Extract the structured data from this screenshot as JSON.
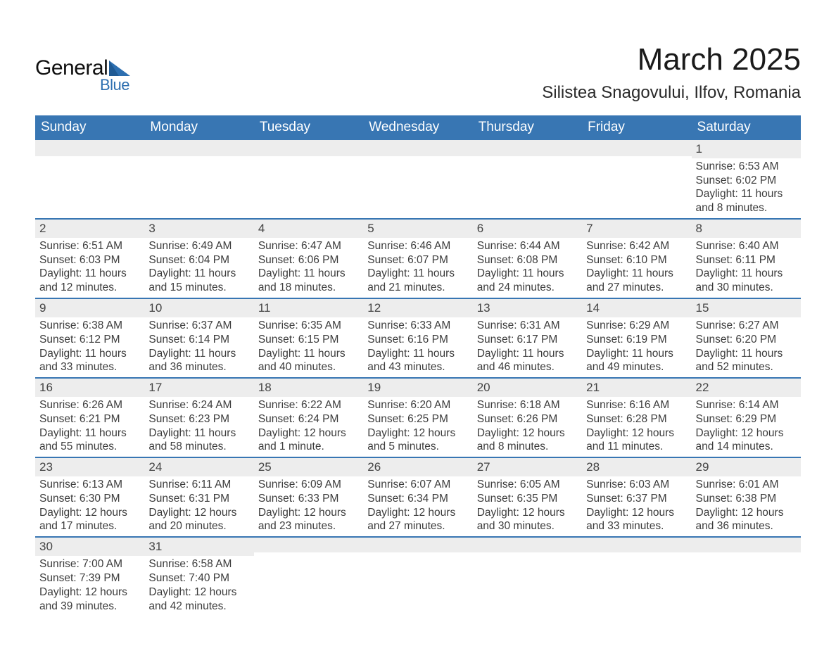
{
  "logo": {
    "general": "General",
    "blue": "Blue"
  },
  "title": "March 2025",
  "location": "Silistea Snagovului, Ilfov, Romania",
  "colors": {
    "header_bg": "#3876b3",
    "header_fg": "#ffffff",
    "daynum_bg": "#ededed",
    "border": "#3876b3",
    "text": "#3c3c3c",
    "logo_blue": "#2d6fb0",
    "logo_dark": "#0f0f0f"
  },
  "weekdays": [
    "Sunday",
    "Monday",
    "Tuesday",
    "Wednesday",
    "Thursday",
    "Friday",
    "Saturday"
  ],
  "weeks": [
    [
      {
        "empty": true
      },
      {
        "empty": true
      },
      {
        "empty": true
      },
      {
        "empty": true
      },
      {
        "empty": true
      },
      {
        "empty": true
      },
      {
        "num": "1",
        "sunrise": "Sunrise: 6:53 AM",
        "sunset": "Sunset: 6:02 PM",
        "dl1": "Daylight: 11 hours",
        "dl2": "and 8 minutes."
      }
    ],
    [
      {
        "num": "2",
        "sunrise": "Sunrise: 6:51 AM",
        "sunset": "Sunset: 6:03 PM",
        "dl1": "Daylight: 11 hours",
        "dl2": "and 12 minutes."
      },
      {
        "num": "3",
        "sunrise": "Sunrise: 6:49 AM",
        "sunset": "Sunset: 6:04 PM",
        "dl1": "Daylight: 11 hours",
        "dl2": "and 15 minutes."
      },
      {
        "num": "4",
        "sunrise": "Sunrise: 6:47 AM",
        "sunset": "Sunset: 6:06 PM",
        "dl1": "Daylight: 11 hours",
        "dl2": "and 18 minutes."
      },
      {
        "num": "5",
        "sunrise": "Sunrise: 6:46 AM",
        "sunset": "Sunset: 6:07 PM",
        "dl1": "Daylight: 11 hours",
        "dl2": "and 21 minutes."
      },
      {
        "num": "6",
        "sunrise": "Sunrise: 6:44 AM",
        "sunset": "Sunset: 6:08 PM",
        "dl1": "Daylight: 11 hours",
        "dl2": "and 24 minutes."
      },
      {
        "num": "7",
        "sunrise": "Sunrise: 6:42 AM",
        "sunset": "Sunset: 6:10 PM",
        "dl1": "Daylight: 11 hours",
        "dl2": "and 27 minutes."
      },
      {
        "num": "8",
        "sunrise": "Sunrise: 6:40 AM",
        "sunset": "Sunset: 6:11 PM",
        "dl1": "Daylight: 11 hours",
        "dl2": "and 30 minutes."
      }
    ],
    [
      {
        "num": "9",
        "sunrise": "Sunrise: 6:38 AM",
        "sunset": "Sunset: 6:12 PM",
        "dl1": "Daylight: 11 hours",
        "dl2": "and 33 minutes."
      },
      {
        "num": "10",
        "sunrise": "Sunrise: 6:37 AM",
        "sunset": "Sunset: 6:14 PM",
        "dl1": "Daylight: 11 hours",
        "dl2": "and 36 minutes."
      },
      {
        "num": "11",
        "sunrise": "Sunrise: 6:35 AM",
        "sunset": "Sunset: 6:15 PM",
        "dl1": "Daylight: 11 hours",
        "dl2": "and 40 minutes."
      },
      {
        "num": "12",
        "sunrise": "Sunrise: 6:33 AM",
        "sunset": "Sunset: 6:16 PM",
        "dl1": "Daylight: 11 hours",
        "dl2": "and 43 minutes."
      },
      {
        "num": "13",
        "sunrise": "Sunrise: 6:31 AM",
        "sunset": "Sunset: 6:17 PM",
        "dl1": "Daylight: 11 hours",
        "dl2": "and 46 minutes."
      },
      {
        "num": "14",
        "sunrise": "Sunrise: 6:29 AM",
        "sunset": "Sunset: 6:19 PM",
        "dl1": "Daylight: 11 hours",
        "dl2": "and 49 minutes."
      },
      {
        "num": "15",
        "sunrise": "Sunrise: 6:27 AM",
        "sunset": "Sunset: 6:20 PM",
        "dl1": "Daylight: 11 hours",
        "dl2": "and 52 minutes."
      }
    ],
    [
      {
        "num": "16",
        "sunrise": "Sunrise: 6:26 AM",
        "sunset": "Sunset: 6:21 PM",
        "dl1": "Daylight: 11 hours",
        "dl2": "and 55 minutes."
      },
      {
        "num": "17",
        "sunrise": "Sunrise: 6:24 AM",
        "sunset": "Sunset: 6:23 PM",
        "dl1": "Daylight: 11 hours",
        "dl2": "and 58 minutes."
      },
      {
        "num": "18",
        "sunrise": "Sunrise: 6:22 AM",
        "sunset": "Sunset: 6:24 PM",
        "dl1": "Daylight: 12 hours",
        "dl2": "and 1 minute."
      },
      {
        "num": "19",
        "sunrise": "Sunrise: 6:20 AM",
        "sunset": "Sunset: 6:25 PM",
        "dl1": "Daylight: 12 hours",
        "dl2": "and 5 minutes."
      },
      {
        "num": "20",
        "sunrise": "Sunrise: 6:18 AM",
        "sunset": "Sunset: 6:26 PM",
        "dl1": "Daylight: 12 hours",
        "dl2": "and 8 minutes."
      },
      {
        "num": "21",
        "sunrise": "Sunrise: 6:16 AM",
        "sunset": "Sunset: 6:28 PM",
        "dl1": "Daylight: 12 hours",
        "dl2": "and 11 minutes."
      },
      {
        "num": "22",
        "sunrise": "Sunrise: 6:14 AM",
        "sunset": "Sunset: 6:29 PM",
        "dl1": "Daylight: 12 hours",
        "dl2": "and 14 minutes."
      }
    ],
    [
      {
        "num": "23",
        "sunrise": "Sunrise: 6:13 AM",
        "sunset": "Sunset: 6:30 PM",
        "dl1": "Daylight: 12 hours",
        "dl2": "and 17 minutes."
      },
      {
        "num": "24",
        "sunrise": "Sunrise: 6:11 AM",
        "sunset": "Sunset: 6:31 PM",
        "dl1": "Daylight: 12 hours",
        "dl2": "and 20 minutes."
      },
      {
        "num": "25",
        "sunrise": "Sunrise: 6:09 AM",
        "sunset": "Sunset: 6:33 PM",
        "dl1": "Daylight: 12 hours",
        "dl2": "and 23 minutes."
      },
      {
        "num": "26",
        "sunrise": "Sunrise: 6:07 AM",
        "sunset": "Sunset: 6:34 PM",
        "dl1": "Daylight: 12 hours",
        "dl2": "and 27 minutes."
      },
      {
        "num": "27",
        "sunrise": "Sunrise: 6:05 AM",
        "sunset": "Sunset: 6:35 PM",
        "dl1": "Daylight: 12 hours",
        "dl2": "and 30 minutes."
      },
      {
        "num": "28",
        "sunrise": "Sunrise: 6:03 AM",
        "sunset": "Sunset: 6:37 PM",
        "dl1": "Daylight: 12 hours",
        "dl2": "and 33 minutes."
      },
      {
        "num": "29",
        "sunrise": "Sunrise: 6:01 AM",
        "sunset": "Sunset: 6:38 PM",
        "dl1": "Daylight: 12 hours",
        "dl2": "and 36 minutes."
      }
    ],
    [
      {
        "num": "30",
        "sunrise": "Sunrise: 7:00 AM",
        "sunset": "Sunset: 7:39 PM",
        "dl1": "Daylight: 12 hours",
        "dl2": "and 39 minutes."
      },
      {
        "num": "31",
        "sunrise": "Sunrise: 6:58 AM",
        "sunset": "Sunset: 7:40 PM",
        "dl1": "Daylight: 12 hours",
        "dl2": "and 42 minutes."
      },
      {
        "empty": true
      },
      {
        "empty": true
      },
      {
        "empty": true
      },
      {
        "empty": true
      },
      {
        "empty": true
      }
    ]
  ]
}
